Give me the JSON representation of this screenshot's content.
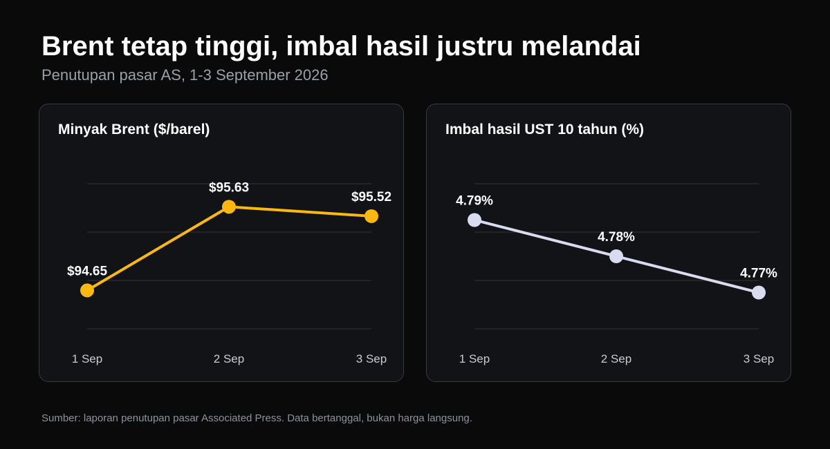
{
  "header": {
    "title": "Brent tetap tinggi, imbal hasil justru melandai",
    "subtitle": "Penutupan pasar AS, 1-3 September 2026"
  },
  "footer": {
    "note": "Sumber: laporan penutupan pasar Associated Press. Data bertanggal, bukan harga langsung."
  },
  "chart_data": [
    {
      "type": "line",
      "title": "Minyak Brent ($/barel)",
      "xlabel": "",
      "ylabel": "",
      "categories": [
        "1 Sep",
        "2 Sep",
        "3 Sep"
      ],
      "values": [
        94.65,
        95.63,
        95.52
      ],
      "data_labels": [
        "$94.65",
        "$95.63",
        "$95.52"
      ],
      "ylim": [
        94.2,
        95.9
      ],
      "grid": true,
      "color": "#fbb80f"
    },
    {
      "type": "line",
      "title": "Imbal hasil UST 10 tahun (%)",
      "xlabel": "",
      "ylabel": "",
      "categories": [
        "1 Sep",
        "2 Sep",
        "3 Sep"
      ],
      "values": [
        4.79,
        4.78,
        4.77
      ],
      "data_labels": [
        "4.79%",
        "4.78%",
        "4.77%"
      ],
      "ylim": [
        4.76,
        4.8
      ],
      "grid": true,
      "color": "#d9dcee"
    }
  ]
}
